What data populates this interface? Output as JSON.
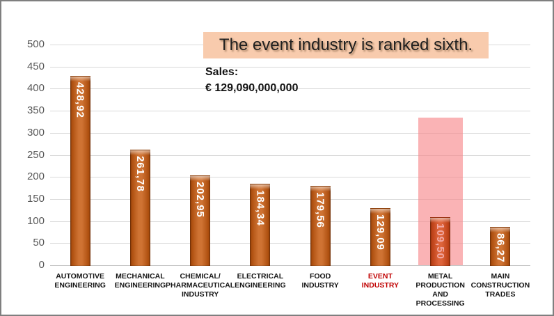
{
  "annotation": {
    "title": "The event industry is ranked sixth.",
    "title_bg": "#F8CBAD",
    "sales_label": "Sales:",
    "sales_value": "€ 129,090,000,000"
  },
  "colors": {
    "bar": "#C75C12",
    "bar_highlighted": "#D84A1B",
    "bar_value_text": "#FFFFFF",
    "bar_value_text_highlighted": "#F2A9A5",
    "highlight_band": "rgba(247,133,136,0.62)",
    "event_label_red": "#C00000",
    "category_label": "#141414",
    "axis_text": "#595959",
    "gridline": "#D9D9D9",
    "frame_border": "#7F7F7F"
  },
  "chart_data": {
    "type": "bar",
    "title": "The event industry is ranked sixth.",
    "subtitle": "Sales: € 129,090,000,000",
    "categories": [
      "AUTOMOTIVE ENGINEERING",
      "MECHANICAL ENGINEERING",
      "CHEMICAL/PHARMACEUTICAL INDUSTRY",
      "ELECTRICAL ENGINEERING",
      "FOOD INDUSTRY",
      "EVENT INDUSTRY",
      "METAL PRODUCTION AND PROCESSING",
      "MAIN CONSTRUCTION TRADES"
    ],
    "xtick_lines": [
      [
        "AUTOMOTIVE",
        "ENGINEERING"
      ],
      [
        "MECHANICAL",
        "ENGINEERING"
      ],
      [
        "CHEMICAL/",
        "PHARMACEUTICAL",
        "INDUSTRY"
      ],
      [
        "ELECTRICAL",
        "ENGINEERING"
      ],
      [
        "FOOD",
        "INDUSTRY"
      ],
      [
        "EVENT",
        "INDUSTRY"
      ],
      [
        "METAL",
        "PRODUCTION",
        "AND",
        "PROCESSING"
      ],
      [
        "MAIN",
        "CONSTRUCTION",
        "TRADES"
      ]
    ],
    "values": [
      428.92,
      261.78,
      202.95,
      184.34,
      179.56,
      129.09,
      109.5,
      86.27
    ],
    "value_labels": [
      "428,92",
      "261,78",
      "202,95",
      "184,34",
      "179,56",
      "129,09",
      "109,50",
      "86,27"
    ],
    "ylim": [
      0,
      500
    ],
    "ytick_step": 50,
    "yticks": [
      0,
      50,
      100,
      150,
      200,
      250,
      300,
      350,
      400,
      450,
      500
    ],
    "grid": true,
    "legend": false,
    "highlight": {
      "category_index": 6,
      "band_top_value": 335
    },
    "red_category_index": 5
  }
}
